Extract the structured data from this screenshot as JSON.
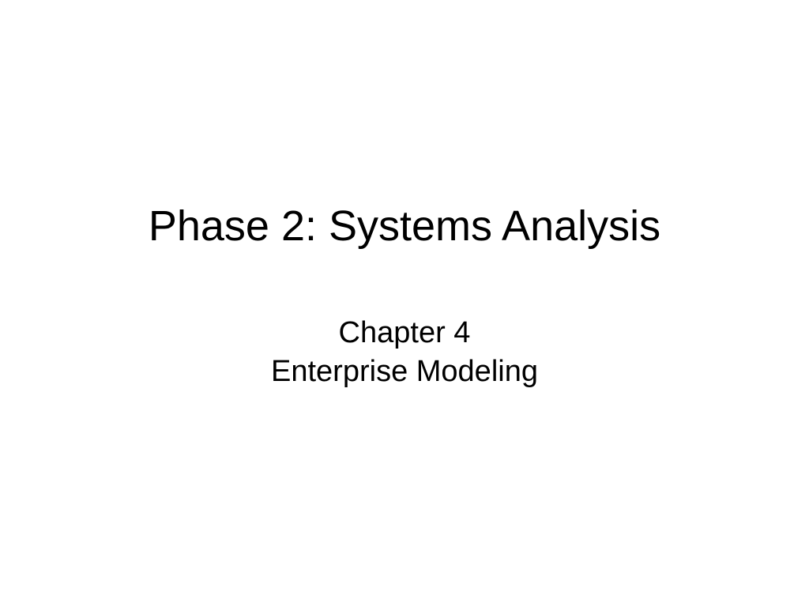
{
  "slide": {
    "title": "Phase 2: Systems Analysis",
    "subtitle_line1": "Chapter 4",
    "subtitle_line2": "Enterprise Modeling",
    "background_color": "#ffffff",
    "text_color": "#000000",
    "title_fontsize": 54,
    "subtitle_fontsize": 38,
    "font_family": "Arial"
  }
}
